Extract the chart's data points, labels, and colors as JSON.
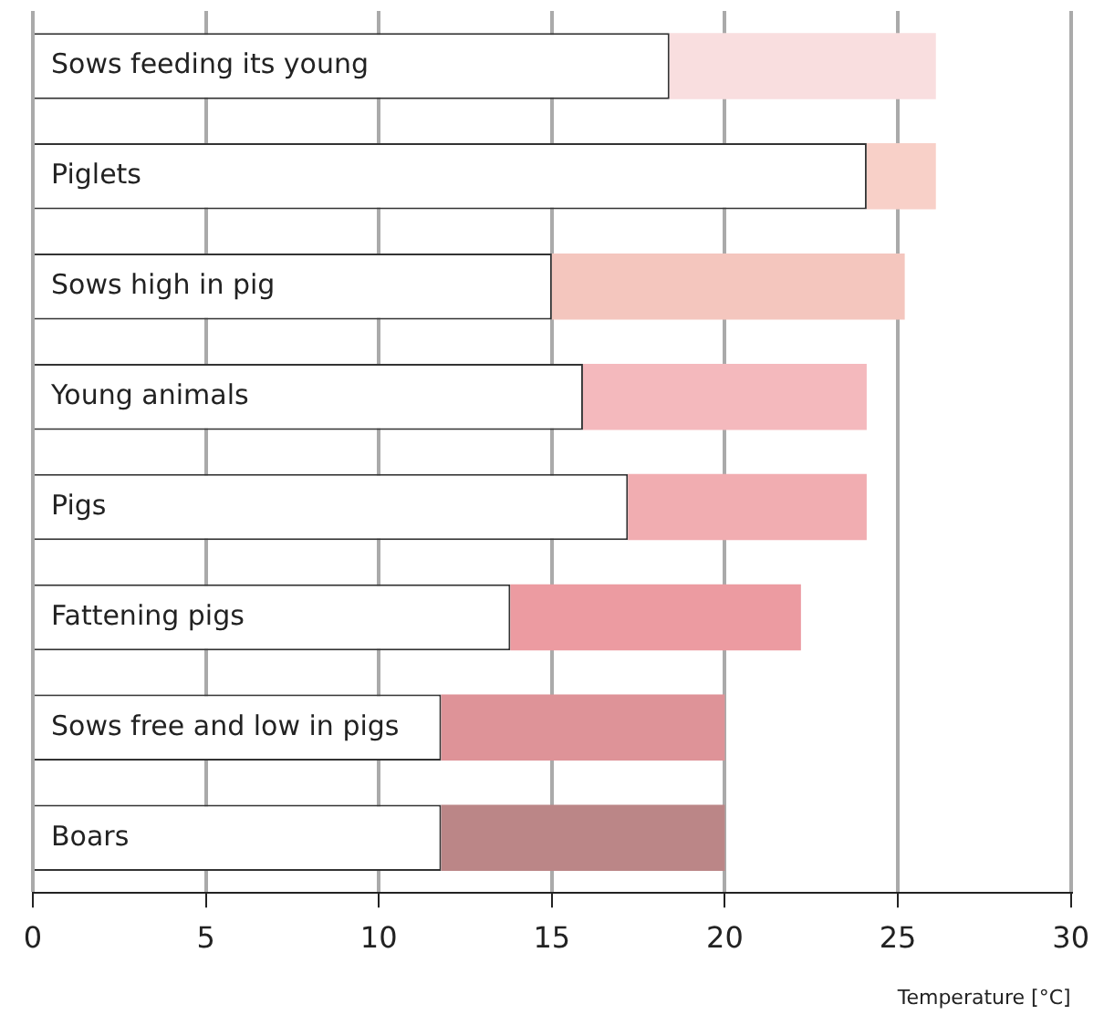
{
  "chart_data": {
    "type": "bar",
    "orientation": "horizontal",
    "stacked": true,
    "xlabel": "Temperature [°C]",
    "categories": [
      "Sows feeding its young",
      "Piglets",
      "Sows high in pig",
      "Young animals",
      "Pigs",
      "Fattening pigs",
      "Sows free and low in pigs",
      "Boars"
    ],
    "series": [
      {
        "color": "#ffffff",
        "values": [
          18.4,
          24.1,
          15,
          15.9,
          17.2,
          13.8,
          11.8,
          11.8
        ]
      },
      {
        "colors": [
          "#f9dedf",
          "#f8d0c8",
          "#f4c6be",
          "#f4b9bd",
          "#f1adb1",
          "#ec9ba1",
          "#de9398",
          "#bb8687"
        ],
        "values": [
          7.7,
          2.0,
          10.2,
          8.2,
          6.9,
          8.4,
          8.2,
          8.2
        ]
      }
    ],
    "xlim": [
      0,
      30
    ],
    "xticks": [
      0,
      5,
      10,
      15,
      20,
      25,
      30
    ],
    "grid": "x",
    "legend": false
  }
}
